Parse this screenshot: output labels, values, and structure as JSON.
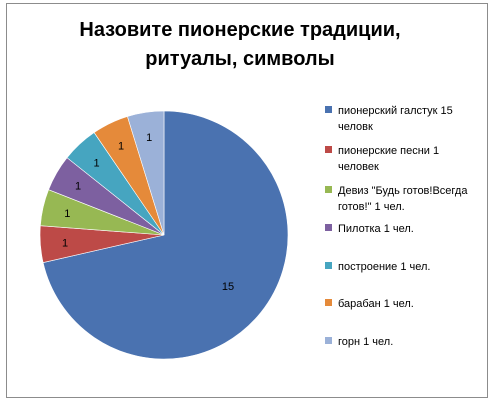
{
  "chart_data": {
    "type": "pie",
    "title_lines": [
      "Назовите пионерские традиции,",
      "ритуалы, символы"
    ],
    "categories": [
      "пионерский галстук 15 человк",
      "пионерские песни 1 человек",
      "Девиз \"Будь готов!Всегда готов!\" 1 чел.",
      "Пилотка 1 чел.",
      "построение 1 чел.",
      "барабан 1 чел.",
      "горн 1 чел."
    ],
    "legend_lines": [
      [
        "пионерский галстук 15",
        "человк"
      ],
      [
        "пионерские песни 1",
        "человек"
      ],
      [
        "Девиз \"Будь готов!Всегда",
        "готов!\" 1 чел."
      ],
      [
        "Пилотка 1 чел."
      ],
      [
        "построение 1 чел."
      ],
      [
        "барабан 1 чел."
      ],
      [
        "горн 1 чел."
      ]
    ],
    "values": [
      15,
      1,
      1,
      1,
      1,
      1,
      1
    ],
    "colors": [
      "#4a72b0",
      "#bd4a47",
      "#97b853",
      "#7d60a0",
      "#46a5c0",
      "#e58a3a",
      "#9bb1d8"
    ],
    "legend_position": "right"
  }
}
